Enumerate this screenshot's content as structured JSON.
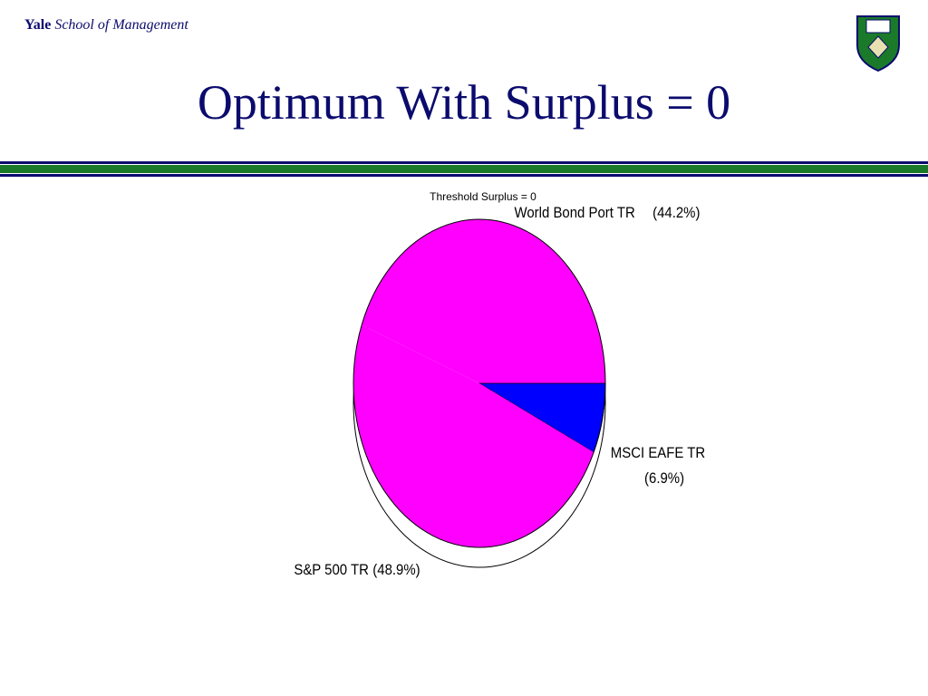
{
  "header": {
    "brand": "Yale",
    "subtitle": "School of Management"
  },
  "title": "Optimum With Surplus = 0",
  "chart_data": {
    "type": "pie",
    "title": "Threshold Surplus = 0",
    "categories": [
      "World Bond Port TR",
      "MSCI EAFE TR",
      "S&P 500 TR"
    ],
    "values": [
      44.2,
      6.9,
      48.9
    ],
    "value_labels": [
      "(44.2%)",
      "(6.9%)",
      "(48.9%)"
    ],
    "colors": [
      "#ff00ff",
      "#0000ff",
      "#ff00ff"
    ]
  }
}
